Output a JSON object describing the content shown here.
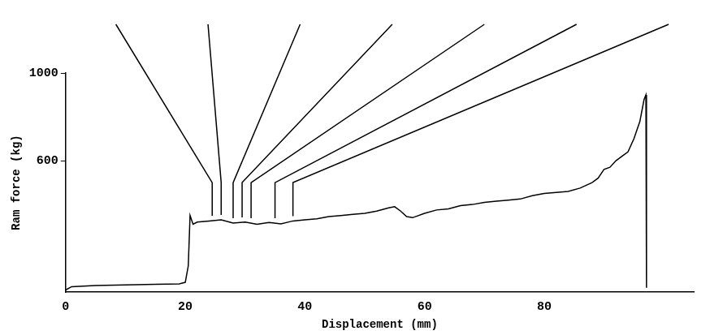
{
  "chart_data": {
    "type": "line",
    "xlabel": "Displacement (mm)",
    "ylabel": "Ram force (kg)",
    "x": [
      0,
      1,
      5,
      10,
      15,
      19,
      20,
      20.5,
      20.8,
      21.3,
      22,
      24,
      26,
      28,
      30,
      32,
      34,
      36,
      38,
      40,
      42,
      44,
      46,
      48,
      50,
      52,
      54,
      55,
      56,
      57,
      58,
      60,
      62,
      64,
      66,
      68,
      70,
      72,
      74,
      76,
      78,
      80,
      82,
      84,
      86,
      88,
      89,
      90,
      91,
      92,
      93,
      94,
      95,
      96,
      96.7,
      97,
      97.1
    ],
    "values": [
      10,
      25,
      30,
      33,
      36,
      38,
      45,
      120,
      350,
      310,
      320,
      325,
      330,
      315,
      320,
      310,
      318,
      312,
      325,
      330,
      335,
      345,
      350,
      355,
      360,
      370,
      385,
      390,
      370,
      345,
      340,
      360,
      375,
      380,
      395,
      400,
      410,
      415,
      420,
      425,
      440,
      450,
      455,
      460,
      475,
      500,
      520,
      560,
      570,
      600,
      620,
      640,
      700,
      780,
      880,
      900,
      20
    ],
    "color": "#000000",
    "xlim": [
      0,
      105
    ],
    "xticks": [
      0,
      20,
      40,
      60,
      80
    ],
    "ylim": [
      0,
      1000
    ],
    "yticks": [
      600,
      1000
    ],
    "grid": false,
    "annotation_x": [
      24.5,
      26,
      28,
      29.5,
      31,
      35,
      38
    ]
  }
}
